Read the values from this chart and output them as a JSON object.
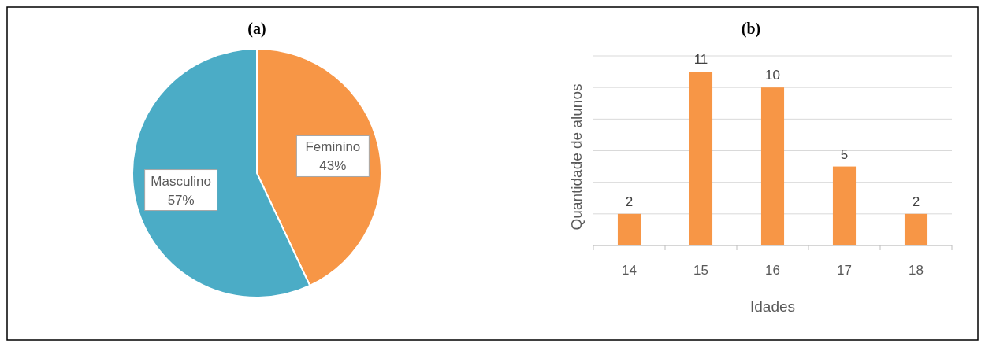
{
  "chart_data": [
    {
      "type": "pie",
      "title": "(a)",
      "categories": [
        "Feminino",
        "Masculino"
      ],
      "values": [
        43,
        57
      ],
      "colors": [
        "#f79646",
        "#4bacc6"
      ],
      "value_labels": [
        "43%",
        "57%"
      ]
    },
    {
      "type": "bar",
      "title": "(b)",
      "xlabel": "Idades",
      "ylabel": "Quantidade de alunos",
      "categories": [
        "14",
        "15",
        "16",
        "17",
        "18"
      ],
      "values": [
        2,
        11,
        10,
        5,
        2
      ],
      "color": "#f79646",
      "ylim": [
        0,
        12
      ],
      "yticks": [
        {
          "value": 0,
          "label": null
        },
        {
          "value": 2,
          "label": null
        },
        {
          "value": 4,
          "label": null
        },
        {
          "value": 6,
          "label": null
        },
        {
          "value": 8,
          "label": null
        },
        {
          "value": 10,
          "label": null
        },
        {
          "value": 12,
          "label": null
        }
      ],
      "grid": "y",
      "tick_labels": "x",
      "data_labels": true
    }
  ]
}
